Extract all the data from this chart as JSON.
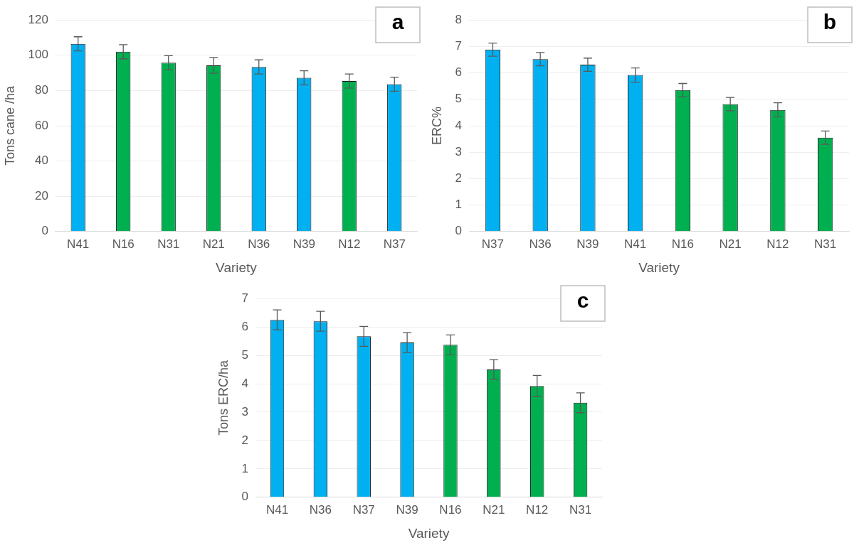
{
  "chart_data": [
    {
      "type": "bar",
      "annotations": [
        "a"
      ],
      "xlabel": "Variety",
      "ylabel": "Tons cane /ha",
      "categories": [
        "N41",
        "N16",
        "N31",
        "N21",
        "N36",
        "N39",
        "N12",
        "N37"
      ],
      "values": [
        106.5,
        102,
        95.8,
        94.3,
        93.4,
        87.2,
        85.4,
        83.6
      ],
      "colors": [
        "#00b0f0",
        "#00b050",
        "#00b050",
        "#00b050",
        "#00b0f0",
        "#00b0f0",
        "#00b050",
        "#00b0f0"
      ],
      "errors": [
        4,
        4,
        4,
        4.5,
        4,
        4,
        4,
        4
      ],
      "ylim": [
        0,
        120
      ],
      "yticks": [
        0,
        20,
        40,
        60,
        80,
        100,
        120
      ],
      "grid": "y"
    },
    {
      "type": "bar",
      "annotations": [
        "b"
      ],
      "xlabel": "Variety",
      "ylabel": "ERC%",
      "categories": [
        "N37",
        "N36",
        "N39",
        "N41",
        "N16",
        "N21",
        "N12",
        "N31"
      ],
      "values": [
        6.88,
        6.52,
        6.31,
        5.92,
        5.35,
        4.82,
        4.6,
        3.55
      ],
      "colors": [
        "#00b0f0",
        "#00b0f0",
        "#00b0f0",
        "#00b0f0",
        "#00b050",
        "#00b050",
        "#00b050",
        "#00b050"
      ],
      "errors": [
        0.25,
        0.25,
        0.25,
        0.27,
        0.25,
        0.25,
        0.27,
        0.25
      ],
      "ylim": [
        0,
        8
      ],
      "yticks": [
        0,
        1,
        2,
        3,
        4,
        5,
        6,
        7,
        8
      ],
      "grid": "y"
    },
    {
      "type": "bar",
      "annotations": [
        "c"
      ],
      "xlabel": "Variety",
      "ylabel": "Tons ERC/ha",
      "categories": [
        "N41",
        "N36",
        "N37",
        "N39",
        "N16",
        "N21",
        "N12",
        "N31"
      ],
      "values": [
        6.25,
        6.2,
        5.67,
        5.45,
        5.37,
        4.5,
        3.92,
        3.33
      ],
      "colors": [
        "#00b0f0",
        "#00b0f0",
        "#00b0f0",
        "#00b0f0",
        "#00b050",
        "#00b050",
        "#00b050",
        "#00b050"
      ],
      "errors": [
        0.35,
        0.35,
        0.35,
        0.35,
        0.35,
        0.35,
        0.37,
        0.35
      ],
      "ylim": [
        0,
        7
      ],
      "yticks": [
        0,
        1,
        2,
        3,
        4,
        5,
        6,
        7
      ],
      "grid": "y"
    }
  ]
}
